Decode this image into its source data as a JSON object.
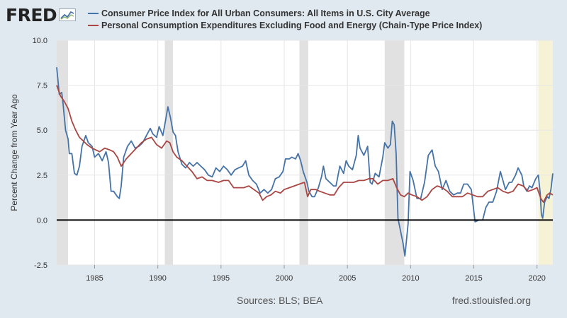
{
  "brand": {
    "logo_text": "FRED",
    "logo_icon": "line-chart-icon"
  },
  "footer": {
    "sources": "Sources: BLS; BEA",
    "site": "fred.stlouisfed.org"
  },
  "colors": {
    "background": "#e1e9f0",
    "plot_bg": "#ffffff",
    "cpi": "#4572a7",
    "pce": "#aa4643",
    "recession": "#e1e1e1",
    "highlight": "#f5f2d5"
  },
  "chart_data": {
    "type": "line",
    "title": "",
    "xlabel": "",
    "ylabel": "Percent Change from Year Ago",
    "xlim": [
      1982.0,
      2021.25
    ],
    "ylim": [
      -2.5,
      10.0
    ],
    "yticks": [
      "-2.5",
      "0.0",
      "2.5",
      "5.0",
      "7.5",
      "10.0"
    ],
    "xticks": [
      "1985",
      "1990",
      "1995",
      "2000",
      "2005",
      "2010",
      "2015",
      "2020"
    ],
    "grid": true,
    "legend": "top",
    "zero_line": 0.0,
    "recessions": [
      [
        1982.0,
        1982.9
      ],
      [
        1990.55,
        1991.2
      ],
      [
        2001.2,
        2001.9
      ],
      [
        2007.95,
        2009.5
      ]
    ],
    "highlight_period": [
      2020.1,
      2021.25
    ],
    "series": [
      {
        "name": "Consumer Price Index for All Urban Consumers: All Items in U.S. City Average",
        "color": "#4572a7",
        "points": [
          [
            1982.0,
            8.5
          ],
          [
            1982.2,
            7.0
          ],
          [
            1982.4,
            7.1
          ],
          [
            1982.5,
            6.5
          ],
          [
            1982.7,
            5.0
          ],
          [
            1982.9,
            4.5
          ],
          [
            1983.0,
            3.7
          ],
          [
            1983.2,
            3.7
          ],
          [
            1983.4,
            2.6
          ],
          [
            1983.6,
            2.5
          ],
          [
            1983.8,
            3.0
          ],
          [
            1984.0,
            4.1
          ],
          [
            1984.3,
            4.7
          ],
          [
            1984.5,
            4.3
          ],
          [
            1984.8,
            4.1
          ],
          [
            1985.0,
            3.5
          ],
          [
            1985.3,
            3.7
          ],
          [
            1985.6,
            3.3
          ],
          [
            1985.9,
            3.8
          ],
          [
            1986.1,
            3.2
          ],
          [
            1986.3,
            1.6
          ],
          [
            1986.5,
            1.6
          ],
          [
            1986.8,
            1.3
          ],
          [
            1986.95,
            1.2
          ],
          [
            1987.1,
            1.9
          ],
          [
            1987.3,
            3.5
          ],
          [
            1987.6,
            4.1
          ],
          [
            1987.9,
            4.4
          ],
          [
            1988.2,
            4.0
          ],
          [
            1988.5,
            4.1
          ],
          [
            1988.8,
            4.3
          ],
          [
            1989.1,
            4.7
          ],
          [
            1989.4,
            5.1
          ],
          [
            1989.6,
            4.8
          ],
          [
            1989.9,
            4.6
          ],
          [
            1990.1,
            5.2
          ],
          [
            1990.4,
            4.7
          ],
          [
            1990.6,
            5.5
          ],
          [
            1990.8,
            6.3
          ],
          [
            1991.0,
            5.7
          ],
          [
            1991.2,
            4.9
          ],
          [
            1991.4,
            4.7
          ],
          [
            1991.6,
            3.8
          ],
          [
            1991.9,
            3.1
          ],
          [
            1992.2,
            2.9
          ],
          [
            1992.5,
            3.2
          ],
          [
            1992.8,
            3.0
          ],
          [
            1993.1,
            3.2
          ],
          [
            1993.4,
            3.0
          ],
          [
            1993.7,
            2.8
          ],
          [
            1994.0,
            2.5
          ],
          [
            1994.3,
            2.4
          ],
          [
            1994.6,
            2.9
          ],
          [
            1994.9,
            2.7
          ],
          [
            1995.2,
            3.0
          ],
          [
            1995.5,
            2.8
          ],
          [
            1995.8,
            2.5
          ],
          [
            1996.1,
            2.8
          ],
          [
            1996.4,
            2.9
          ],
          [
            1996.7,
            3.0
          ],
          [
            1996.95,
            3.3
          ],
          [
            1997.2,
            2.5
          ],
          [
            1997.5,
            2.2
          ],
          [
            1997.8,
            2.0
          ],
          [
            1998.1,
            1.5
          ],
          [
            1998.4,
            1.7
          ],
          [
            1998.7,
            1.5
          ],
          [
            1999.0,
            1.7
          ],
          [
            1999.3,
            2.3
          ],
          [
            1999.6,
            2.4
          ],
          [
            1999.9,
            2.7
          ],
          [
            2000.1,
            3.4
          ],
          [
            2000.4,
            3.4
          ],
          [
            2000.6,
            3.5
          ],
          [
            2000.9,
            3.4
          ],
          [
            2001.1,
            3.7
          ],
          [
            2001.3,
            3.3
          ],
          [
            2001.5,
            2.7
          ],
          [
            2001.8,
            2.1
          ],
          [
            2001.95,
            1.6
          ],
          [
            2002.2,
            1.3
          ],
          [
            2002.4,
            1.3
          ],
          [
            2002.7,
            1.8
          ],
          [
            2002.95,
            2.4
          ],
          [
            2003.1,
            3.0
          ],
          [
            2003.3,
            2.3
          ],
          [
            2003.6,
            2.1
          ],
          [
            2003.9,
            1.9
          ],
          [
            2004.1,
            1.9
          ],
          [
            2004.4,
            3.0
          ],
          [
            2004.7,
            2.6
          ],
          [
            2004.9,
            3.3
          ],
          [
            2005.1,
            3.0
          ],
          [
            2005.4,
            2.8
          ],
          [
            2005.7,
            3.6
          ],
          [
            2005.85,
            4.7
          ],
          [
            2006.0,
            4.0
          ],
          [
            2006.3,
            3.6
          ],
          [
            2006.6,
            4.1
          ],
          [
            2006.8,
            2.1
          ],
          [
            2006.95,
            2.0
          ],
          [
            2007.2,
            2.6
          ],
          [
            2007.5,
            2.4
          ],
          [
            2007.8,
            3.5
          ],
          [
            2007.95,
            4.3
          ],
          [
            2008.2,
            4.0
          ],
          [
            2008.4,
            4.2
          ],
          [
            2008.55,
            5.5
          ],
          [
            2008.7,
            5.3
          ],
          [
            2008.85,
            3.7
          ],
          [
            2009.0,
            0.1
          ],
          [
            2009.2,
            -0.6
          ],
          [
            2009.4,
            -1.3
          ],
          [
            2009.55,
            -2.0
          ],
          [
            2009.8,
            -0.2
          ],
          [
            2009.95,
            2.7
          ],
          [
            2010.2,
            2.2
          ],
          [
            2010.5,
            1.2
          ],
          [
            2010.8,
            1.2
          ],
          [
            2011.1,
            2.1
          ],
          [
            2011.4,
            3.6
          ],
          [
            2011.7,
            3.9
          ],
          [
            2011.95,
            3.0
          ],
          [
            2012.2,
            2.7
          ],
          [
            2012.5,
            1.7
          ],
          [
            2012.8,
            2.2
          ],
          [
            2013.1,
            1.6
          ],
          [
            2013.4,
            1.4
          ],
          [
            2013.7,
            1.5
          ],
          [
            2013.95,
            1.5
          ],
          [
            2014.2,
            2.0
          ],
          [
            2014.5,
            2.0
          ],
          [
            2014.8,
            1.7
          ],
          [
            2014.95,
            0.8
          ],
          [
            2015.1,
            -0.1
          ],
          [
            2015.4,
            0.0
          ],
          [
            2015.7,
            0.0
          ],
          [
            2015.95,
            0.7
          ],
          [
            2016.2,
            1.0
          ],
          [
            2016.5,
            1.0
          ],
          [
            2016.8,
            1.6
          ],
          [
            2017.1,
            2.7
          ],
          [
            2017.3,
            2.2
          ],
          [
            2017.5,
            1.7
          ],
          [
            2017.8,
            2.1
          ],
          [
            2018.0,
            2.1
          ],
          [
            2018.3,
            2.5
          ],
          [
            2018.5,
            2.9
          ],
          [
            2018.8,
            2.5
          ],
          [
            2018.95,
            1.9
          ],
          [
            2019.2,
            1.6
          ],
          [
            2019.4,
            1.9
          ],
          [
            2019.6,
            1.8
          ],
          [
            2019.9,
            2.3
          ],
          [
            2020.1,
            2.5
          ],
          [
            2020.25,
            1.5
          ],
          [
            2020.35,
            0.3
          ],
          [
            2020.45,
            0.1
          ],
          [
            2020.6,
            1.0
          ],
          [
            2020.8,
            1.3
          ],
          [
            2020.95,
            1.2
          ],
          [
            2021.1,
            1.7
          ],
          [
            2021.25,
            2.6
          ]
        ]
      },
      {
        "name": "Personal Consumption Expenditures Excluding Food and Energy (Chain-Type Price Index)",
        "color": "#aa4643",
        "points": [
          [
            1982.0,
            7.5
          ],
          [
            1982.3,
            6.9
          ],
          [
            1982.6,
            6.6
          ],
          [
            1982.9,
            6.2
          ],
          [
            1983.2,
            5.5
          ],
          [
            1983.5,
            5.0
          ],
          [
            1983.8,
            4.6
          ],
          [
            1984.1,
            4.4
          ],
          [
            1984.4,
            4.2
          ],
          [
            1984.8,
            4.0
          ],
          [
            1985.1,
            3.9
          ],
          [
            1985.4,
            3.8
          ],
          [
            1985.8,
            4.0
          ],
          [
            1986.2,
            3.9
          ],
          [
            1986.5,
            3.8
          ],
          [
            1986.8,
            3.5
          ],
          [
            1987.1,
            3.0
          ],
          [
            1987.5,
            3.4
          ],
          [
            1987.9,
            3.7
          ],
          [
            1988.3,
            4.0
          ],
          [
            1988.7,
            4.3
          ],
          [
            1989.1,
            4.5
          ],
          [
            1989.5,
            4.6
          ],
          [
            1989.9,
            4.2
          ],
          [
            1990.3,
            4.0
          ],
          [
            1990.7,
            4.4
          ],
          [
            1990.95,
            4.3
          ],
          [
            1991.2,
            3.8
          ],
          [
            1991.5,
            3.5
          ],
          [
            1991.9,
            3.3
          ],
          [
            1992.3,
            3.0
          ],
          [
            1992.7,
            2.7
          ],
          [
            1993.1,
            2.3
          ],
          [
            1993.5,
            2.4
          ],
          [
            1993.9,
            2.2
          ],
          [
            1994.3,
            2.2
          ],
          [
            1994.8,
            2.1
          ],
          [
            1995.2,
            2.2
          ],
          [
            1995.6,
            2.2
          ],
          [
            1996.0,
            1.8
          ],
          [
            1996.4,
            1.8
          ],
          [
            1996.8,
            1.8
          ],
          [
            1997.2,
            1.9
          ],
          [
            1997.6,
            1.7
          ],
          [
            1998.0,
            1.5
          ],
          [
            1998.3,
            1.1
          ],
          [
            1998.6,
            1.3
          ],
          [
            1998.95,
            1.4
          ],
          [
            1999.3,
            1.6
          ],
          [
            1999.7,
            1.5
          ],
          [
            2000.0,
            1.7
          ],
          [
            2000.4,
            1.8
          ],
          [
            2000.8,
            1.9
          ],
          [
            2001.2,
            2.0
          ],
          [
            2001.6,
            2.1
          ],
          [
            2001.85,
            1.3
          ],
          [
            2002.1,
            1.7
          ],
          [
            2002.5,
            1.7
          ],
          [
            2002.8,
            1.6
          ],
          [
            2003.2,
            1.5
          ],
          [
            2003.6,
            1.4
          ],
          [
            2003.95,
            1.4
          ],
          [
            2004.3,
            1.8
          ],
          [
            2004.7,
            2.1
          ],
          [
            2005.1,
            2.1
          ],
          [
            2005.5,
            2.1
          ],
          [
            2005.9,
            2.2
          ],
          [
            2006.3,
            2.2
          ],
          [
            2006.7,
            2.3
          ],
          [
            2007.0,
            2.3
          ],
          [
            2007.4,
            2.0
          ],
          [
            2007.8,
            2.2
          ],
          [
            2008.2,
            2.2
          ],
          [
            2008.6,
            2.3
          ],
          [
            2008.9,
            1.8
          ],
          [
            2009.2,
            1.4
          ],
          [
            2009.5,
            1.3
          ],
          [
            2009.8,
            1.5
          ],
          [
            2010.1,
            1.4
          ],
          [
            2010.5,
            1.3
          ],
          [
            2010.9,
            1.1
          ],
          [
            2011.3,
            1.3
          ],
          [
            2011.7,
            1.7
          ],
          [
            2012.1,
            1.9
          ],
          [
            2012.5,
            1.8
          ],
          [
            2012.9,
            1.6
          ],
          [
            2013.3,
            1.3
          ],
          [
            2013.7,
            1.3
          ],
          [
            2014.1,
            1.3
          ],
          [
            2014.5,
            1.5
          ],
          [
            2014.9,
            1.4
          ],
          [
            2015.3,
            1.3
          ],
          [
            2015.7,
            1.3
          ],
          [
            2016.1,
            1.6
          ],
          [
            2016.5,
            1.7
          ],
          [
            2016.9,
            1.8
          ],
          [
            2017.3,
            1.6
          ],
          [
            2017.7,
            1.5
          ],
          [
            2018.1,
            1.6
          ],
          [
            2018.5,
            2.0
          ],
          [
            2018.9,
            1.9
          ],
          [
            2019.3,
            1.6
          ],
          [
            2019.7,
            1.7
          ],
          [
            2020.0,
            1.8
          ],
          [
            2020.3,
            1.2
          ],
          [
            2020.5,
            1.0
          ],
          [
            2020.8,
            1.4
          ],
          [
            2021.0,
            1.5
          ],
          [
            2021.25,
            1.4
          ]
        ]
      }
    ]
  }
}
